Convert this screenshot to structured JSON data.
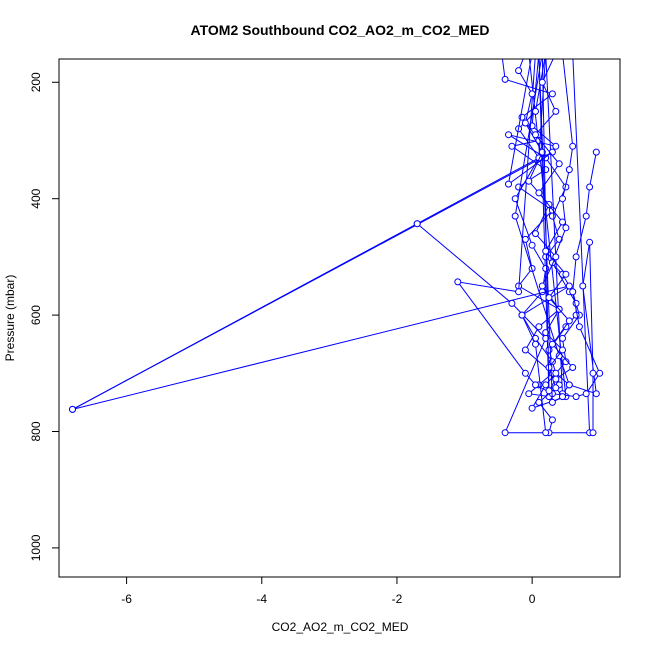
{
  "chart_data": {
    "type": "line",
    "title": "ATOM2 Southbound CO2_AO2_m_CO2_MED",
    "xlabel": "CO2_AO2_m_CO2_MED",
    "ylabel": "Pressure (mbar)",
    "xlim": [
      -7.0,
      1.3
    ],
    "ylim": [
      1050,
      160
    ],
    "y_reversed": true,
    "grid": false,
    "marker": "open-circle",
    "x_ticks": [
      -6,
      -4,
      -2,
      0
    ],
    "x_tick_labels": [
      "-6",
      "-4",
      "-2",
      "0"
    ],
    "y_ticks": [
      200,
      400,
      600,
      800,
      1000
    ],
    "y_tick_labels": [
      "200",
      "400",
      "600",
      "800",
      "1000"
    ],
    "color": "#0000ff",
    "series": [
      {
        "points": [
          [
            -0.45,
            150
          ],
          [
            -0.4,
            195
          ],
          [
            0.3,
            220
          ],
          [
            -0.15,
            260
          ],
          [
            0.1,
            300
          ],
          [
            -0.3,
            310
          ],
          [
            0.2,
            350
          ],
          [
            -0.2,
            380
          ],
          [
            0.3,
            420
          ],
          [
            -0.1,
            470
          ],
          [
            0.0,
            520
          ],
          [
            -0.2,
            550
          ],
          [
            0.4,
            590
          ],
          [
            0.1,
            620
          ],
          [
            -0.1,
            660
          ],
          [
            0.3,
            700
          ],
          [
            0.1,
            720
          ],
          [
            -0.05,
            735
          ],
          [
            0.25,
            740
          ],
          [
            0.1,
            150
          ],
          [
            0.0,
            275
          ],
          [
            0.35,
            310
          ],
          [
            -0.35,
            290
          ],
          [
            0.2,
            330
          ],
          [
            0.5,
            380
          ],
          [
            0.3,
            430
          ],
          [
            0.4,
            470
          ],
          [
            0.2,
            500
          ],
          [
            0.45,
            530
          ],
          [
            0.6,
            560
          ],
          [
            0.7,
            600
          ],
          [
            0.45,
            640
          ],
          [
            0.5,
            680
          ],
          [
            0.2,
            720
          ],
          [
            0.0,
            760
          ],
          [
            0.5,
            740
          ],
          [
            -0.05,
            150
          ]
        ]
      },
      {
        "points": [
          [
            0.45,
            150
          ],
          [
            0.6,
            310
          ],
          [
            0.55,
            350
          ],
          [
            0.45,
            400
          ],
          [
            0.5,
            450
          ],
          [
            0.3,
            510
          ],
          [
            0.55,
            560
          ],
          [
            0.65,
            580
          ],
          [
            0.65,
            600
          ],
          [
            0.5,
            620
          ],
          [
            0.25,
            660
          ],
          [
            0.35,
            700
          ],
          [
            0.55,
            720
          ],
          [
            0.45,
            735
          ],
          [
            0.2,
            150
          ],
          [
            0.05,
            250
          ],
          [
            -0.2,
            280
          ],
          [
            0.1,
            330
          ],
          [
            -0.25,
            400
          ],
          [
            0.0,
            480
          ],
          [
            0.2,
            520
          ],
          [
            0.15,
            560
          ],
          [
            -0.15,
            600
          ],
          [
            0.05,
            640
          ],
          [
            0.3,
            680
          ],
          [
            0.4,
            720
          ],
          [
            0.1,
            750
          ],
          [
            0.3,
            780
          ],
          [
            0.25,
            802
          ],
          [
            0.85,
            802
          ],
          [
            0.6,
            150
          ]
        ]
      },
      {
        "points": [
          [
            0.95,
            320
          ],
          [
            0.85,
            380
          ],
          [
            0.8,
            430
          ],
          [
            0.65,
            500
          ],
          [
            0.6,
            560
          ],
          [
            0.7,
            620
          ],
          [
            1.0,
            700
          ],
          [
            0.8,
            735
          ],
          [
            0.65,
            740
          ],
          [
            0.3,
            735
          ],
          [
            0.05,
            720
          ],
          [
            -0.1,
            700
          ],
          [
            -1.1,
            543
          ],
          [
            -0.2,
            560
          ],
          [
            0.05,
            150
          ]
        ]
      },
      {
        "points": [
          [
            -1.7,
            443
          ],
          [
            -0.3,
            580
          ],
          [
            0.2,
            640
          ],
          [
            -0.4,
            802
          ],
          [
            0.2,
            802
          ],
          [
            0.05,
            650
          ],
          [
            -0.15,
            600
          ],
          [
            0.55,
            550
          ],
          [
            -6.8,
            762
          ],
          [
            0.3,
            320
          ],
          [
            -0.35,
            375
          ],
          [
            0.0,
            150
          ]
        ]
      },
      {
        "points": [
          [
            -6.8,
            762
          ],
          [
            -1.7,
            443
          ],
          [
            0.1,
            330
          ],
          [
            0.2,
            150
          ]
        ]
      },
      {
        "points": [
          [
            0.9,
            802
          ],
          [
            0.9,
            700
          ],
          [
            0.85,
            475
          ],
          [
            0.75,
            550
          ],
          [
            0.95,
            735
          ],
          [
            0.55,
            720
          ],
          [
            0.4,
            670
          ],
          [
            -0.25,
            430
          ],
          [
            0.15,
            150
          ]
        ]
      },
      {
        "points": [
          [
            -0.1,
            150
          ],
          [
            -0.2,
            180
          ],
          [
            0.0,
            220
          ],
          [
            -0.1,
            270
          ],
          [
            0.15,
            320
          ],
          [
            -0.05,
            370
          ],
          [
            0.25,
            410
          ],
          [
            0.05,
            460
          ],
          [
            0.35,
            500
          ],
          [
            0.15,
            550
          ],
          [
            0.4,
            590
          ],
          [
            0.2,
            630
          ],
          [
            0.45,
            660
          ],
          [
            0.25,
            690
          ],
          [
            0.35,
            725
          ],
          [
            0.45,
            740
          ],
          [
            0.3,
            750
          ],
          [
            0.1,
            150
          ]
        ]
      },
      {
        "points": [
          [
            0.35,
            150
          ],
          [
            0.15,
            200
          ],
          [
            0.35,
            250
          ],
          [
            0.05,
            290
          ],
          [
            0.4,
            340
          ],
          [
            0.1,
            390
          ],
          [
            0.45,
            440
          ],
          [
            0.2,
            490
          ],
          [
            0.5,
            530
          ],
          [
            0.25,
            570
          ],
          [
            0.55,
            610
          ],
          [
            0.3,
            650
          ],
          [
            0.6,
            690
          ],
          [
            0.35,
            710
          ],
          [
            0.25,
            730
          ],
          [
            0.15,
            150
          ]
        ]
      }
    ]
  }
}
